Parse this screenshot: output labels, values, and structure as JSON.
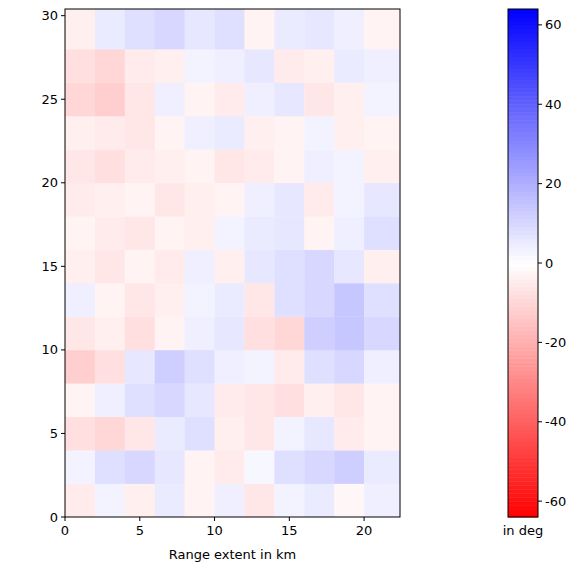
{
  "chart_data": {
    "type": "heatmap",
    "x_label": "Range extent in km",
    "xlim": [
      0,
      22.4
    ],
    "ylim": [
      0,
      30.4
    ],
    "xticks": [
      0,
      5,
      10,
      15,
      20
    ],
    "yticks": [
      0,
      5,
      10,
      15,
      20,
      25,
      30
    ],
    "x_edges": [
      0,
      2,
      4,
      6,
      8,
      10,
      12,
      14,
      16,
      18,
      20,
      22.4
    ],
    "y_edges": [
      0,
      2,
      4,
      6,
      8,
      10,
      12,
      14,
      16,
      18,
      20,
      22,
      24,
      26,
      28,
      30.4
    ],
    "cells": [
      [
        -5,
        3,
        -4,
        5,
        -3,
        4,
        -6,
        3,
        5,
        -2,
        4
      ],
      [
        3,
        8,
        10,
        6,
        -3,
        -5,
        2,
        8,
        10,
        12,
        5
      ],
      [
        -8,
        -10,
        -6,
        5,
        8,
        -4,
        -6,
        3,
        6,
        -5,
        -3
      ],
      [
        -3,
        4,
        8,
        10,
        6,
        -5,
        -6,
        -8,
        -4,
        -6,
        -3
      ],
      [
        -12,
        -8,
        6,
        12,
        8,
        4,
        3,
        -5,
        8,
        10,
        4
      ],
      [
        -6,
        -4,
        -8,
        -3,
        4,
        6,
        -8,
        -10,
        12,
        14,
        10
      ],
      [
        4,
        -3,
        -6,
        -4,
        3,
        5,
        -6,
        8,
        10,
        14,
        8
      ],
      [
        -4,
        -6,
        -3,
        -5,
        4,
        -4,
        6,
        8,
        10,
        6,
        -4
      ],
      [
        -3,
        -5,
        -6,
        -3,
        -4,
        3,
        5,
        6,
        -3,
        4,
        8
      ],
      [
        -5,
        -4,
        -3,
        -6,
        -4,
        -3,
        4,
        6,
        -5,
        3,
        6
      ],
      [
        -6,
        -8,
        -5,
        -4,
        -3,
        -6,
        -5,
        -3,
        4,
        3,
        -4
      ],
      [
        -4,
        -5,
        -6,
        -3,
        4,
        5,
        -4,
        -3,
        3,
        -4,
        -3
      ],
      [
        -10,
        -12,
        -6,
        4,
        -3,
        -5,
        4,
        6,
        -6,
        -4,
        3
      ],
      [
        -8,
        -10,
        -5,
        -4,
        3,
        4,
        6,
        -5,
        -4,
        5,
        4
      ],
      [
        -4,
        5,
        8,
        10,
        6,
        8,
        -3,
        5,
        6,
        4,
        -3
      ]
    ],
    "colorbar_range": [
      -64,
      64
    ],
    "colorbar_ticks": [
      -60,
      -40,
      -20,
      0,
      20,
      40,
      60
    ],
    "colorbar_label": "in deg"
  }
}
